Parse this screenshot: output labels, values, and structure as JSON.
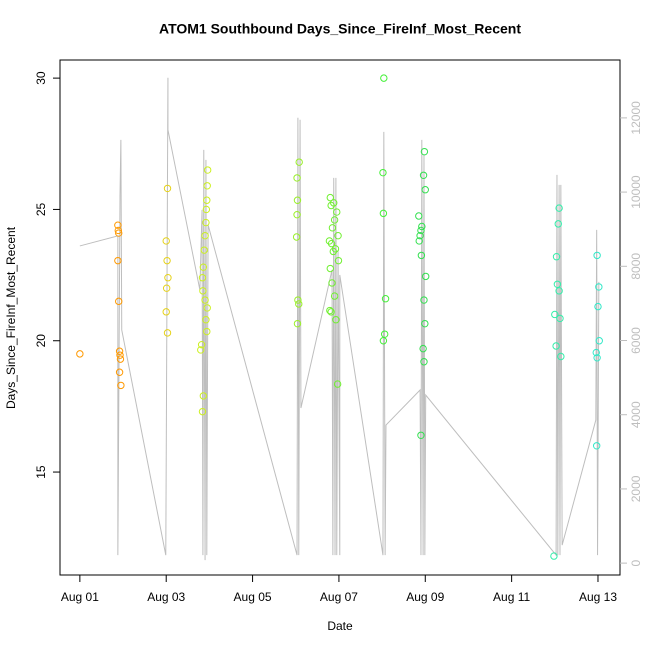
{
  "chart_data": {
    "type": "scatter",
    "title": "ATOM1 Southbound Days_Since_FireInf_Most_Recent",
    "x_label": "Date",
    "y_label": "Days_Since_FireInf_Most_Recent",
    "xlim": [
      -0.46,
      12.51
    ],
    "ylim": [
      11.08,
      30.69
    ],
    "y2lim": [
      -320,
      13560
    ],
    "xticks": [
      {
        "value": 0,
        "label": "Aug 01"
      },
      {
        "value": 2,
        "label": "Aug 03"
      },
      {
        "value": 4,
        "label": "Aug 05"
      },
      {
        "value": 6,
        "label": "Aug 07"
      },
      {
        "value": 8,
        "label": "Aug 09"
      },
      {
        "value": 10,
        "label": "Aug 11"
      },
      {
        "value": 12,
        "label": "Aug 13"
      }
    ],
    "yticks": [
      15,
      20,
      25,
      30
    ],
    "y2ticks": [
      0,
      2000,
      4000,
      6000,
      8000,
      10000,
      12000
    ],
    "series": [
      {
        "color": "#bebebe",
        "axis": "y2",
        "mode": "line",
        "x": [
          0,
          0.88,
          0.88,
          0.93,
          0.95,
          0.97,
          1.99,
          2.04,
          2.04,
          2.78,
          2.83,
          2.85,
          2.87,
          2.9,
          2.92,
          2.94,
          2.97,
          5.03,
          5.05,
          5.07,
          5.1,
          5.12,
          5.84,
          5.86,
          5.88,
          5.91,
          5.93,
          5.95,
          5.98,
          6.02,
          6.02,
          7.02,
          7.04,
          7.07,
          7.09,
          7.88,
          7.9,
          7.92,
          7.95,
          7.97,
          7.99,
          8.01,
          11.03,
          11.05,
          11.07,
          11.1,
          11.12,
          11.14,
          11.17,
          11.95,
          11.97,
          11.99,
          12.02
        ],
        "values": [
          8549,
          8819,
          216,
          9925,
          11408,
          6284,
          216,
          13080,
          11678,
          7363,
          9520,
          216,
          11139,
          81,
          10869,
          216,
          9116,
          216,
          12002,
          216,
          11948,
          4180,
          7902,
          216,
          10383,
          216,
          10383,
          216,
          8442,
          216,
          7767,
          216,
          11624,
          216,
          3722,
          4666,
          216,
          11408,
          216,
          11004,
          216,
          4531,
          216,
          10464,
          216,
          10195,
          216,
          10195,
          485,
          3857,
          8981,
          216,
          7579
        ]
      },
      {
        "color": "#ff9900",
        "x": [
          0,
          0.88,
          0.89,
          0.9,
          0.88,
          0.9,
          0.92,
          0.93,
          0.94,
          0.92,
          0.95
        ],
        "values": [
          19.5,
          24.4,
          24.2,
          24.1,
          23.05,
          21.5,
          19.6,
          19.45,
          19.3,
          18.8,
          18.3
        ]
      },
      {
        "color": "#e6d21a",
        "x": [
          2.03,
          2.0,
          2.02,
          2.04,
          2.01,
          2.0,
          2.03
        ],
        "values": [
          25.8,
          23.8,
          23.05,
          22.4,
          22.0,
          21.1,
          20.3
        ]
      },
      {
        "color": "#ccf020",
        "x": [
          2.96,
          2.95,
          2.94,
          2.93,
          2.92,
          2.9,
          2.88,
          2.86,
          2.84,
          2.85,
          2.9,
          2.95,
          2.92,
          2.94,
          2.82,
          2.8,
          2.86,
          2.84
        ],
        "values": [
          26.5,
          25.9,
          25.35,
          25.0,
          24.5,
          24.0,
          23.45,
          22.8,
          22.4,
          21.9,
          21.55,
          21.25,
          20.8,
          20.35,
          19.85,
          19.65,
          17.9,
          17.3
        ]
      },
      {
        "color": "#99f028",
        "x": [
          5.08,
          5.03,
          5.04,
          5.03,
          5.02,
          5.05,
          5.07,
          5.04
        ],
        "values": [
          26.8,
          26.2,
          25.35,
          24.8,
          23.95,
          21.55,
          21.4,
          20.65
        ]
      },
      {
        "color": "#70f030",
        "x": [
          5.8,
          5.88,
          5.82,
          5.95,
          5.9,
          5.85,
          5.98,
          5.78,
          5.83,
          5.92,
          5.87,
          5.99,
          5.8,
          5.84,
          5.9,
          5.79,
          5.82,
          5.93,
          5.97
        ],
        "values": [
          25.45,
          25.25,
          25.15,
          24.9,
          24.6,
          24.3,
          24.0,
          23.8,
          23.7,
          23.5,
          23.4,
          23.05,
          22.75,
          22.2,
          21.7,
          21.15,
          21.1,
          20.8,
          18.35
        ]
      },
      {
        "color": "#44f038",
        "x": [
          7.04,
          7.02,
          7.03,
          7.08,
          7.06,
          7.03
        ],
        "values": [
          30.0,
          26.4,
          24.85,
          21.6,
          20.25,
          20.0
        ]
      },
      {
        "color": "#33e050",
        "x": [
          7.98,
          7.96,
          8.0,
          7.85,
          7.92,
          7.9,
          7.88,
          7.86,
          7.91,
          8.01,
          7.97,
          7.99,
          7.95,
          7.97,
          7.9
        ],
        "values": [
          27.2,
          26.3,
          25.75,
          24.75,
          24.35,
          24.2,
          24.0,
          23.8,
          23.25,
          22.45,
          21.55,
          20.65,
          19.7,
          19.2,
          16.4
        ]
      },
      {
        "color": "#33eeaa",
        "x": [
          11.1,
          11.08,
          11.04,
          11.06,
          11.1,
          11.0,
          11.12,
          11.03,
          11.14,
          10.98
        ],
        "values": [
          25.05,
          24.45,
          23.2,
          22.15,
          21.9,
          21.0,
          20.85,
          19.8,
          19.4,
          11.8
        ]
      },
      {
        "color": "#33e8c8",
        "x": [
          11.98,
          12.02,
          12.0,
          12.03,
          11.96,
          11.98,
          11.97
        ],
        "values": [
          23.25,
          22.05,
          21.3,
          20.0,
          19.55,
          19.35,
          16.0
        ]
      }
    ]
  }
}
